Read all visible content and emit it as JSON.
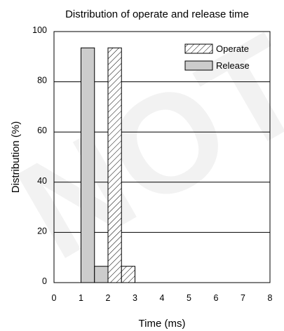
{
  "chart_data": {
    "type": "bar",
    "title": "Distribution of operate and release time",
    "xlabel": "Time (ms)",
    "ylabel": "Distribution (%)",
    "xlim": [
      0,
      8
    ],
    "ylim": [
      0,
      100
    ],
    "x_ticks": [
      "0",
      "1",
      "2",
      "3",
      "4",
      "5",
      "6",
      "7",
      "8"
    ],
    "y_ticks": [
      "0",
      "20",
      "40",
      "60",
      "80",
      "100"
    ],
    "grid": "horizontal",
    "legend_position": "top-right",
    "series": [
      {
        "name": "Operate",
        "pattern": "hatched",
        "bins": [
          {
            "x0": 2.0,
            "x1": 2.5,
            "value": 93.5
          },
          {
            "x0": 2.5,
            "x1": 3.0,
            "value": 6.5
          }
        ]
      },
      {
        "name": "Release",
        "color": "#cccccc",
        "bins": [
          {
            "x0": 1.0,
            "x1": 1.5,
            "value": 93.5
          },
          {
            "x0": 1.5,
            "x1": 2.0,
            "value": 6.5
          }
        ]
      }
    ]
  }
}
